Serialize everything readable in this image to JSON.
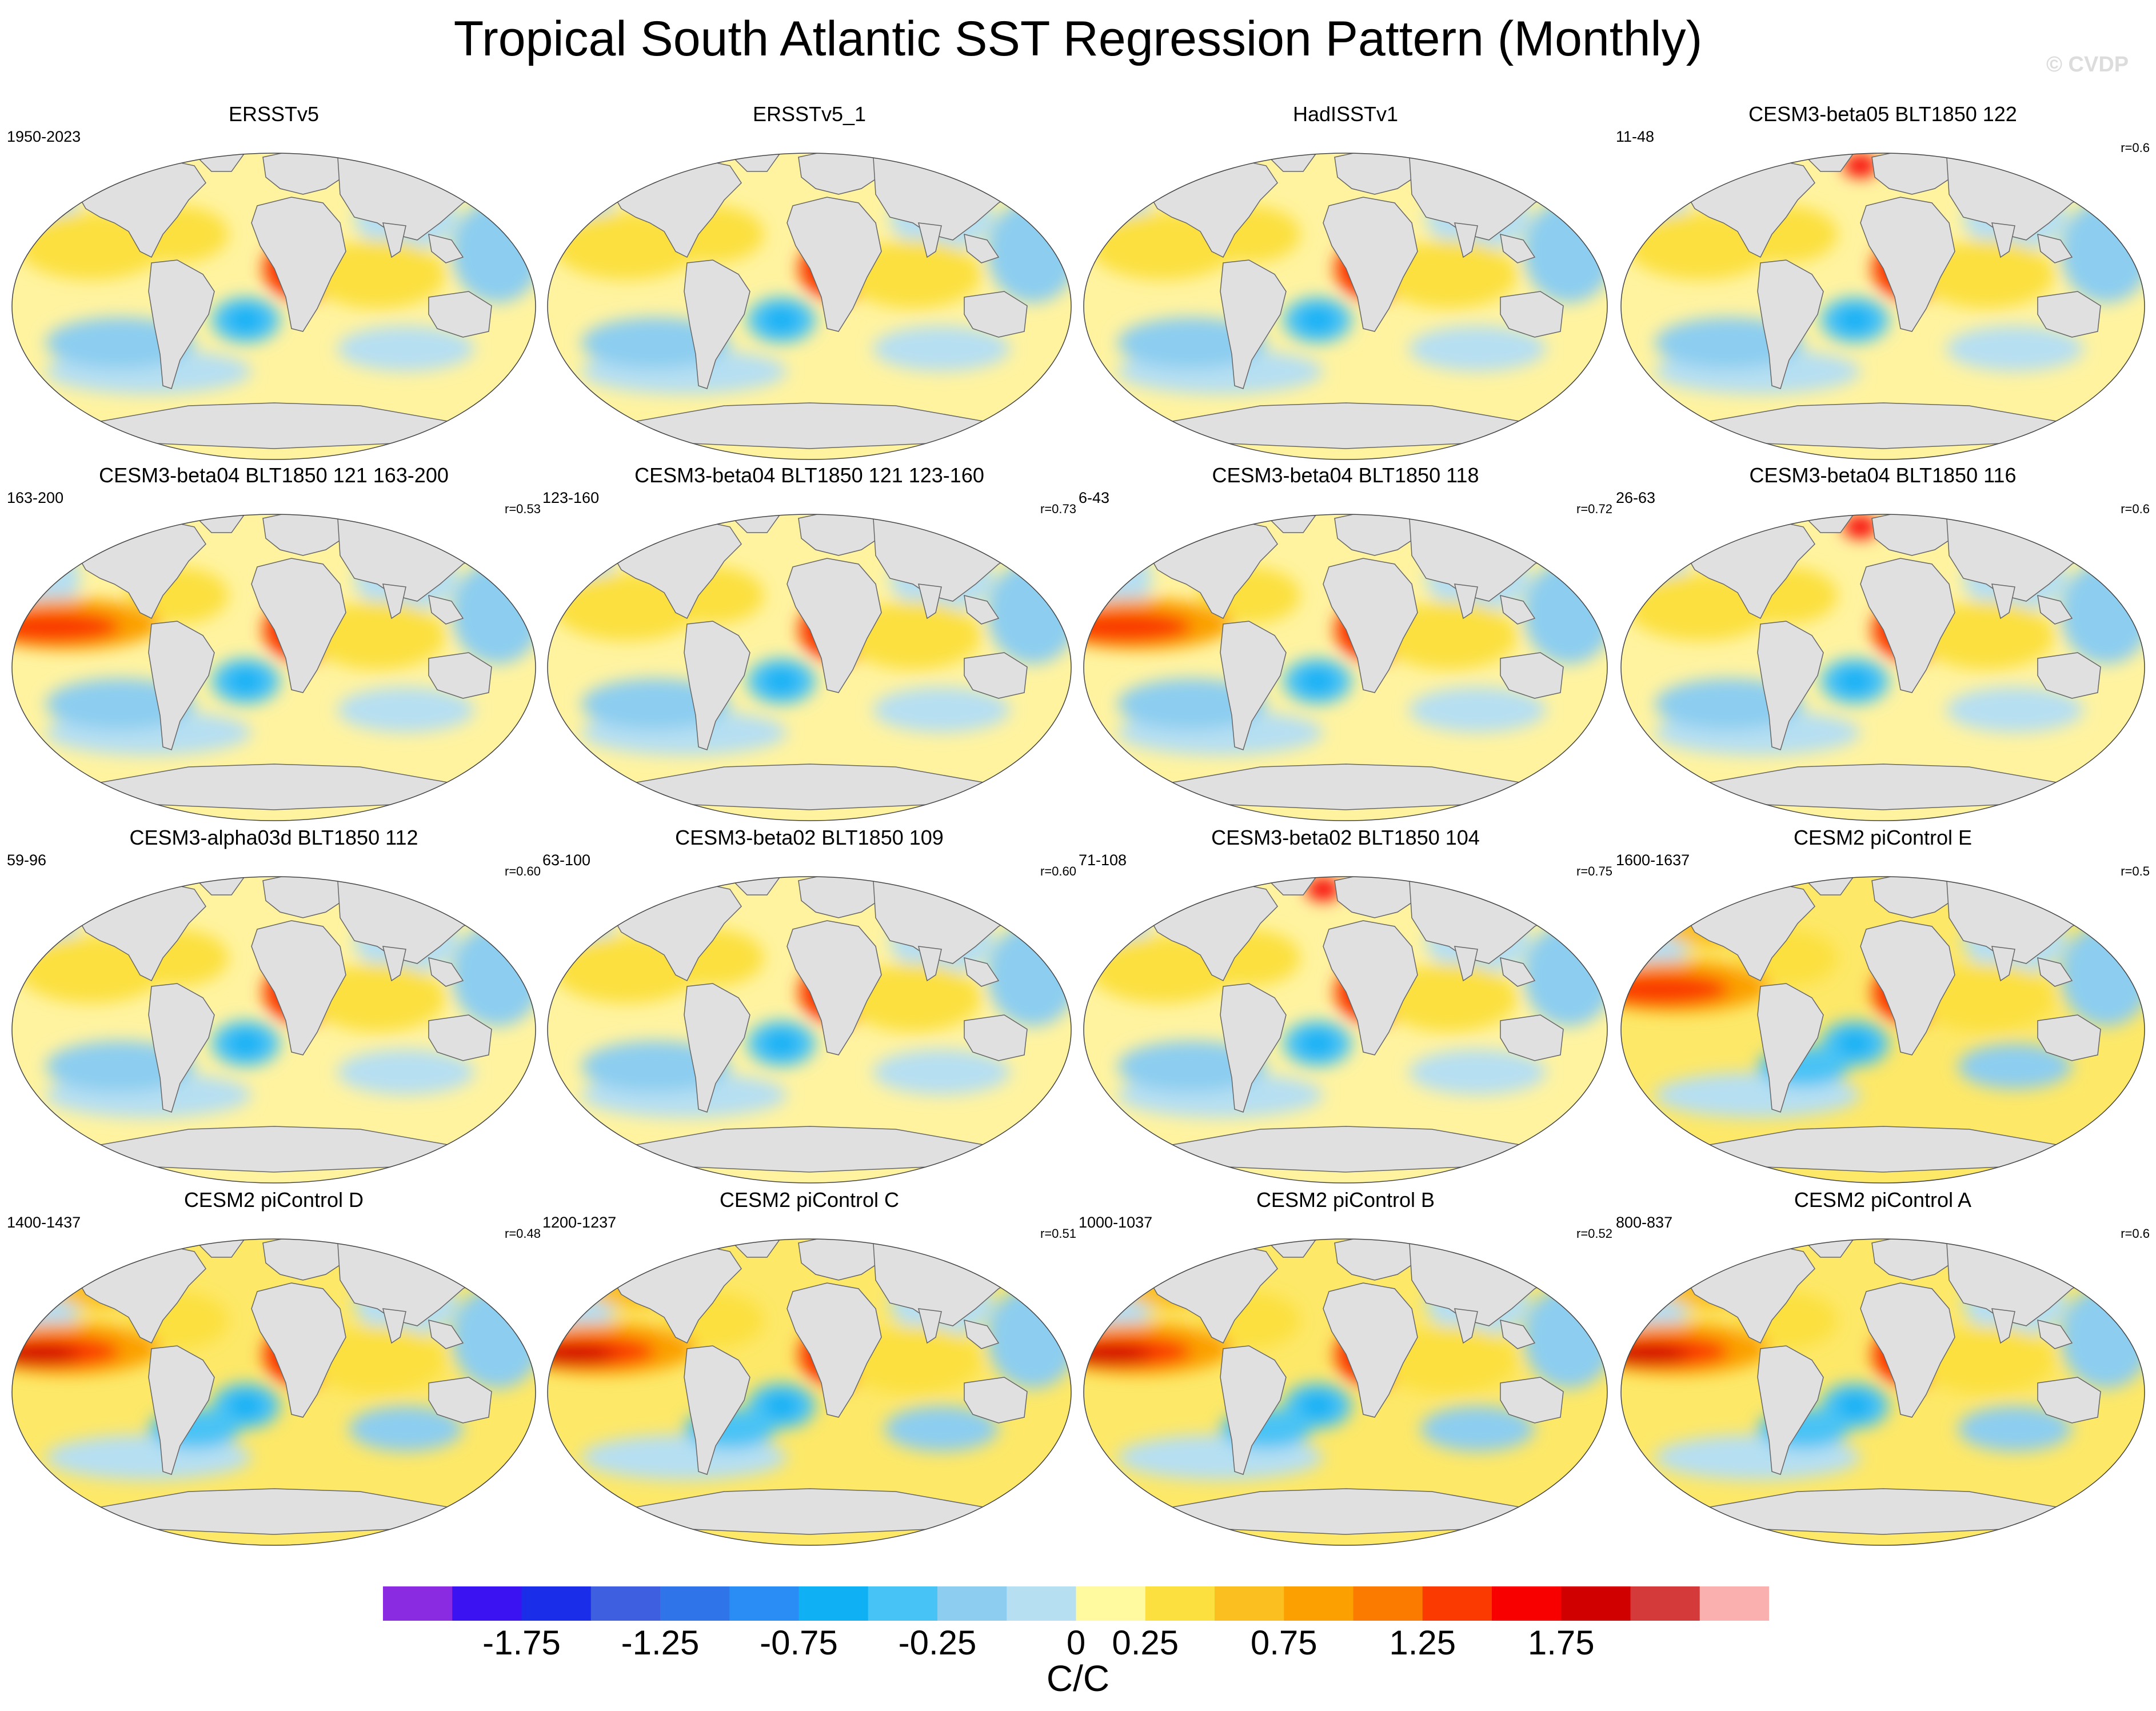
{
  "title": "Tropical South Atlantic SST Regression Pattern (Monthly)",
  "watermark": "© CVDP",
  "panels": [
    {
      "title": "ERSSTv5",
      "period": "1950-2023",
      "r": "",
      "variant": 0
    },
    {
      "title": "ERSSTv5_1",
      "period": "",
      "r": "",
      "variant": 1
    },
    {
      "title": "HadISSTv1",
      "period": "",
      "r": "",
      "variant": 2
    },
    {
      "title": "CESM3-beta05 BLT1850 122",
      "period": "11-48",
      "r": "r=0.6",
      "variant": 3
    },
    {
      "title": "CESM3-beta04 BLT1850 121 163-200",
      "period": "163-200",
      "r": "r=0.53",
      "variant": 4
    },
    {
      "title": "CESM3-beta04 BLT1850 121 123-160",
      "period": "123-160",
      "r": "r=0.73",
      "variant": 5
    },
    {
      "title": "CESM3-beta04 BLT1850 118",
      "period": "6-43",
      "r": "r=0.72",
      "variant": 6
    },
    {
      "title": "CESM3-beta04 BLT1850 116",
      "period": "26-63",
      "r": "r=0.6",
      "variant": 7
    },
    {
      "title": "CESM3-alpha03d BLT1850 112",
      "period": "59-96",
      "r": "r=0.60",
      "variant": 8
    },
    {
      "title": "CESM3-beta02 BLT1850 109",
      "period": "63-100",
      "r": "r=0.60",
      "variant": 9
    },
    {
      "title": "CESM3-beta02 BLT1850 104",
      "period": "71-108",
      "r": "r=0.75",
      "variant": 10
    },
    {
      "title": "CESM2 piControl E",
      "period": "1600-1637",
      "r": "r=0.5",
      "variant": 11
    },
    {
      "title": "CESM2 piControl D",
      "period": "1400-1437",
      "r": "r=0.48",
      "variant": 12
    },
    {
      "title": "CESM2 piControl C",
      "period": "1200-1237",
      "r": "r=0.51",
      "variant": 13
    },
    {
      "title": "CESM2 piControl B",
      "period": "1000-1037",
      "r": "r=0.52",
      "variant": 14
    },
    {
      "title": "CESM2 piControl A",
      "period": "800-837",
      "r": "r=0.6",
      "variant": 15
    }
  ],
  "colorbar": {
    "colors": [
      "#8a2be2",
      "#3b12f2",
      "#1a2de8",
      "#3d5fe0",
      "#2f74e8",
      "#2a8df5",
      "#10b0f5",
      "#48c3f5",
      "#8ccdf0",
      "#b6dff2",
      "#fffaa0",
      "#fce040",
      "#fbc020",
      "#fba000",
      "#fb7a00",
      "#fa3a00",
      "#f80000",
      "#d00000",
      "#d43a3a",
      "#fbb0b0"
    ],
    "labels": [
      "-1.75",
      "-1.25",
      "-0.75",
      "-0.25",
      "0",
      "0.25",
      "0.75",
      "1.25",
      "1.75"
    ],
    "units": "C/C"
  }
}
